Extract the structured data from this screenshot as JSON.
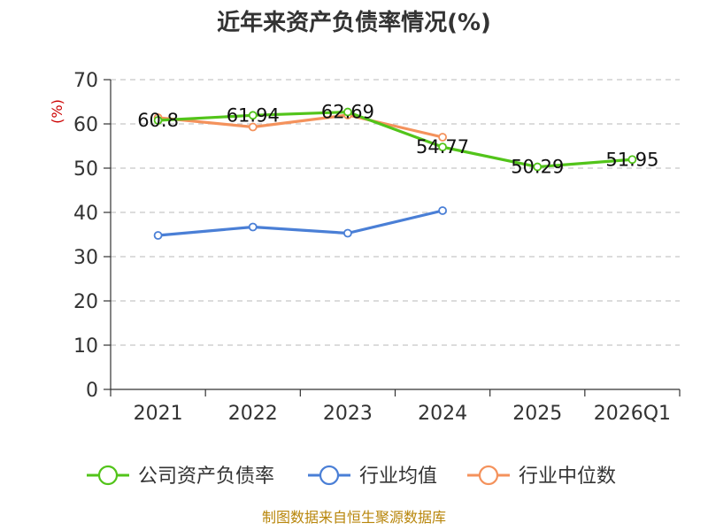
{
  "chart_data": {
    "type": "line",
    "title": "近年来资产负债率情况(%)",
    "ylabel": "(%)",
    "categories": [
      "2021",
      "2022",
      "2023",
      "2024",
      "2025",
      "2026Q1"
    ],
    "ylim": [
      0,
      70
    ],
    "yticks": [
      "0",
      "10",
      "20",
      "30",
      "40",
      "50",
      "60",
      "70"
    ],
    "grid": true,
    "legend_position": "bottom",
    "series": [
      {
        "name": "公司资产负债率",
        "color": "#52c41a",
        "values": [
          60.8,
          61.94,
          62.69,
          54.77,
          50.29,
          51.95
        ],
        "labels": [
          "60.8",
          "61.94",
          "62.69",
          "54.77",
          "50.29",
          "51.95"
        ]
      },
      {
        "name": "行业均值",
        "color": "#4a7fd6",
        "values": [
          34.8,
          36.7,
          35.3,
          40.4,
          null,
          null
        ]
      },
      {
        "name": "行业中位数",
        "color": "#f4925c",
        "values": [
          61.4,
          59.3,
          62.0,
          57.0,
          null,
          null
        ]
      }
    ],
    "source": "制图数据来自恒生聚源数据库"
  }
}
